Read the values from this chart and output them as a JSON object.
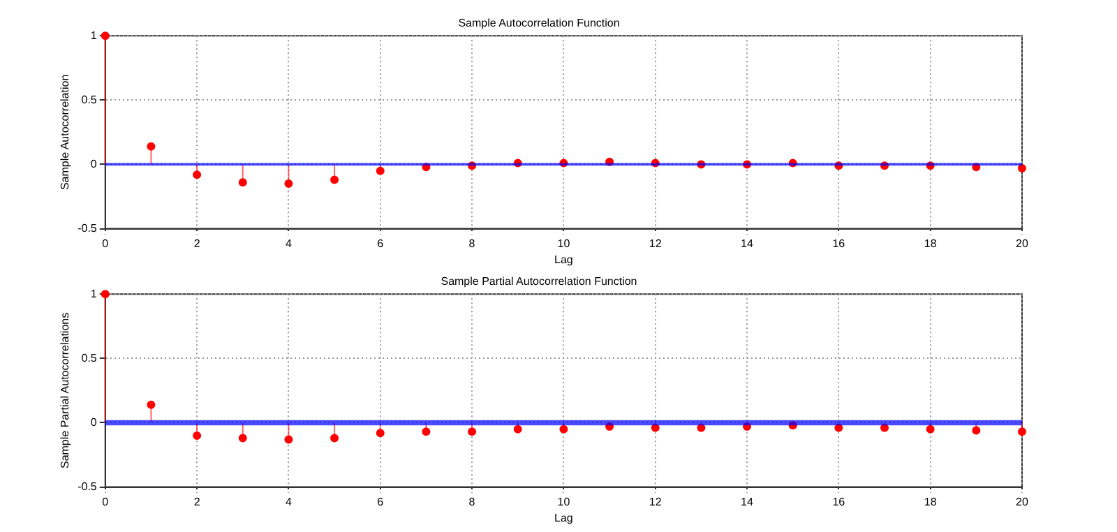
{
  "chart_data": [
    {
      "type": "lollipop",
      "title": "Sample Autocorrelation Function",
      "xlabel": "Lag",
      "ylabel": "Sample Autocorrelation",
      "x": [
        0,
        1,
        2,
        3,
        4,
        5,
        6,
        7,
        8,
        9,
        10,
        11,
        12,
        13,
        14,
        15,
        16,
        17,
        18,
        19,
        20
      ],
      "xlim": [
        0,
        20
      ],
      "xticks": [
        0,
        2,
        4,
        6,
        8,
        10,
        12,
        14,
        16,
        18,
        20
      ],
      "ylim": [
        -0.5,
        1
      ],
      "yticks": [
        -0.5,
        0,
        0.5,
        1
      ],
      "grid": true,
      "series": [
        {
          "marker": "circle",
          "color": "#ff0000",
          "values": [
            1,
            0.14,
            -0.08,
            -0.14,
            -0.15,
            -0.12,
            -0.05,
            -0.02,
            -0.01,
            0.01,
            0.01,
            0.02,
            0.01,
            0,
            0,
            0.01,
            -0.01,
            -0.01,
            -0.01,
            -0.02,
            -0.03
          ]
        }
      ],
      "bands": [
        {
          "axis": "y",
          "from": -0.01,
          "to": 0.01,
          "color": "#0000ff"
        }
      ]
    },
    {
      "type": "lollipop",
      "title": "Sample Partial Autocorrelation Function",
      "xlabel": "Lag",
      "ylabel": "Sample Partial Autocorrelations",
      "x": [
        0,
        1,
        2,
        3,
        4,
        5,
        6,
        7,
        8,
        9,
        10,
        11,
        12,
        13,
        14,
        15,
        16,
        17,
        18,
        19,
        20
      ],
      "xlim": [
        0,
        20
      ],
      "xticks": [
        0,
        2,
        4,
        6,
        8,
        10,
        12,
        14,
        16,
        18,
        20
      ],
      "ylim": [
        -0.5,
        1
      ],
      "yticks": [
        -0.5,
        0,
        0.5,
        1
      ],
      "grid": true,
      "series": [
        {
          "marker": "circle",
          "color": "#ff0000",
          "values": [
            1,
            0.14,
            -0.1,
            -0.12,
            -0.13,
            -0.12,
            -0.08,
            -0.07,
            -0.07,
            -0.05,
            -0.05,
            -0.03,
            -0.04,
            -0.04,
            -0.03,
            -0.02,
            -0.04,
            -0.04,
            -0.05,
            -0.06,
            -0.07
          ]
        }
      ],
      "bands": [
        {
          "axis": "y",
          "from": -0.02,
          "to": 0.02,
          "color": "#0000ff"
        }
      ]
    }
  ]
}
